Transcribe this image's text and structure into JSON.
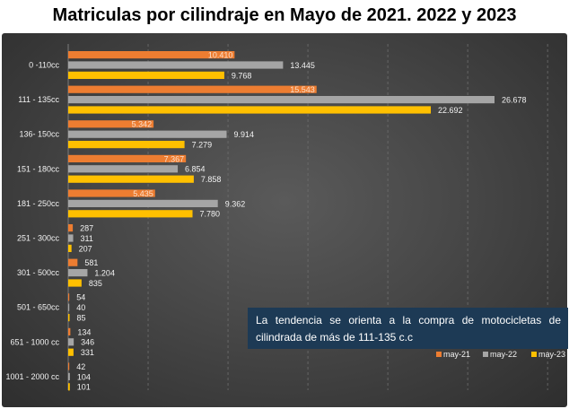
{
  "title": "Matriculas por cilindraje en Mayo de 2021. 2022 y 2023",
  "callout": "La tendencia se orienta a la compra de motocicletas de cilindrada de más de  111-135 c.c",
  "colors": {
    "may21": "#ed7d31",
    "may22": "#a5a5a5",
    "may23": "#ffc000",
    "callout_bg": "#1d3a55"
  },
  "chart_data": {
    "type": "bar",
    "orientation": "horizontal",
    "title": "Matriculas por cilindraje en Mayo de 2021. 2022 y 2023",
    "categories": [
      "0 -110cc",
      "111 - 135cc",
      "136- 150cc",
      "151 - 180cc",
      "181 - 250cc",
      "251 - 300cc",
      "301 - 500cc",
      "501 - 650cc",
      "651 - 1000 cc",
      "1001 - 2000 cc"
    ],
    "series": [
      {
        "name": "may-21",
        "values": [
          10410,
          15543,
          5342,
          7367,
          5435,
          287,
          581,
          54,
          134,
          42
        ],
        "labels": [
          "10.410",
          "15.543",
          "5.342",
          "7.367",
          "5.435",
          "287",
          "581",
          "54",
          "134",
          "42"
        ]
      },
      {
        "name": "may-22",
        "values": [
          13445,
          26678,
          9914,
          6854,
          9362,
          311,
          1204,
          40,
          346,
          104
        ],
        "labels": [
          "13.445",
          "26.678",
          "9.914",
          "6.854",
          "9.362",
          "311",
          "1.204",
          "40",
          "346",
          "104"
        ]
      },
      {
        "name": "may-23",
        "values": [
          9768,
          22692,
          7279,
          7858,
          7780,
          207,
          835,
          85,
          331,
          101
        ],
        "labels": [
          "9.768",
          "22.692",
          "7.279",
          "7.858",
          "7.780",
          "207",
          "835",
          "85",
          "331",
          "101"
        ]
      }
    ],
    "xlim": [
      0,
      30000
    ],
    "grid": true,
    "legend": "bottom-right"
  }
}
